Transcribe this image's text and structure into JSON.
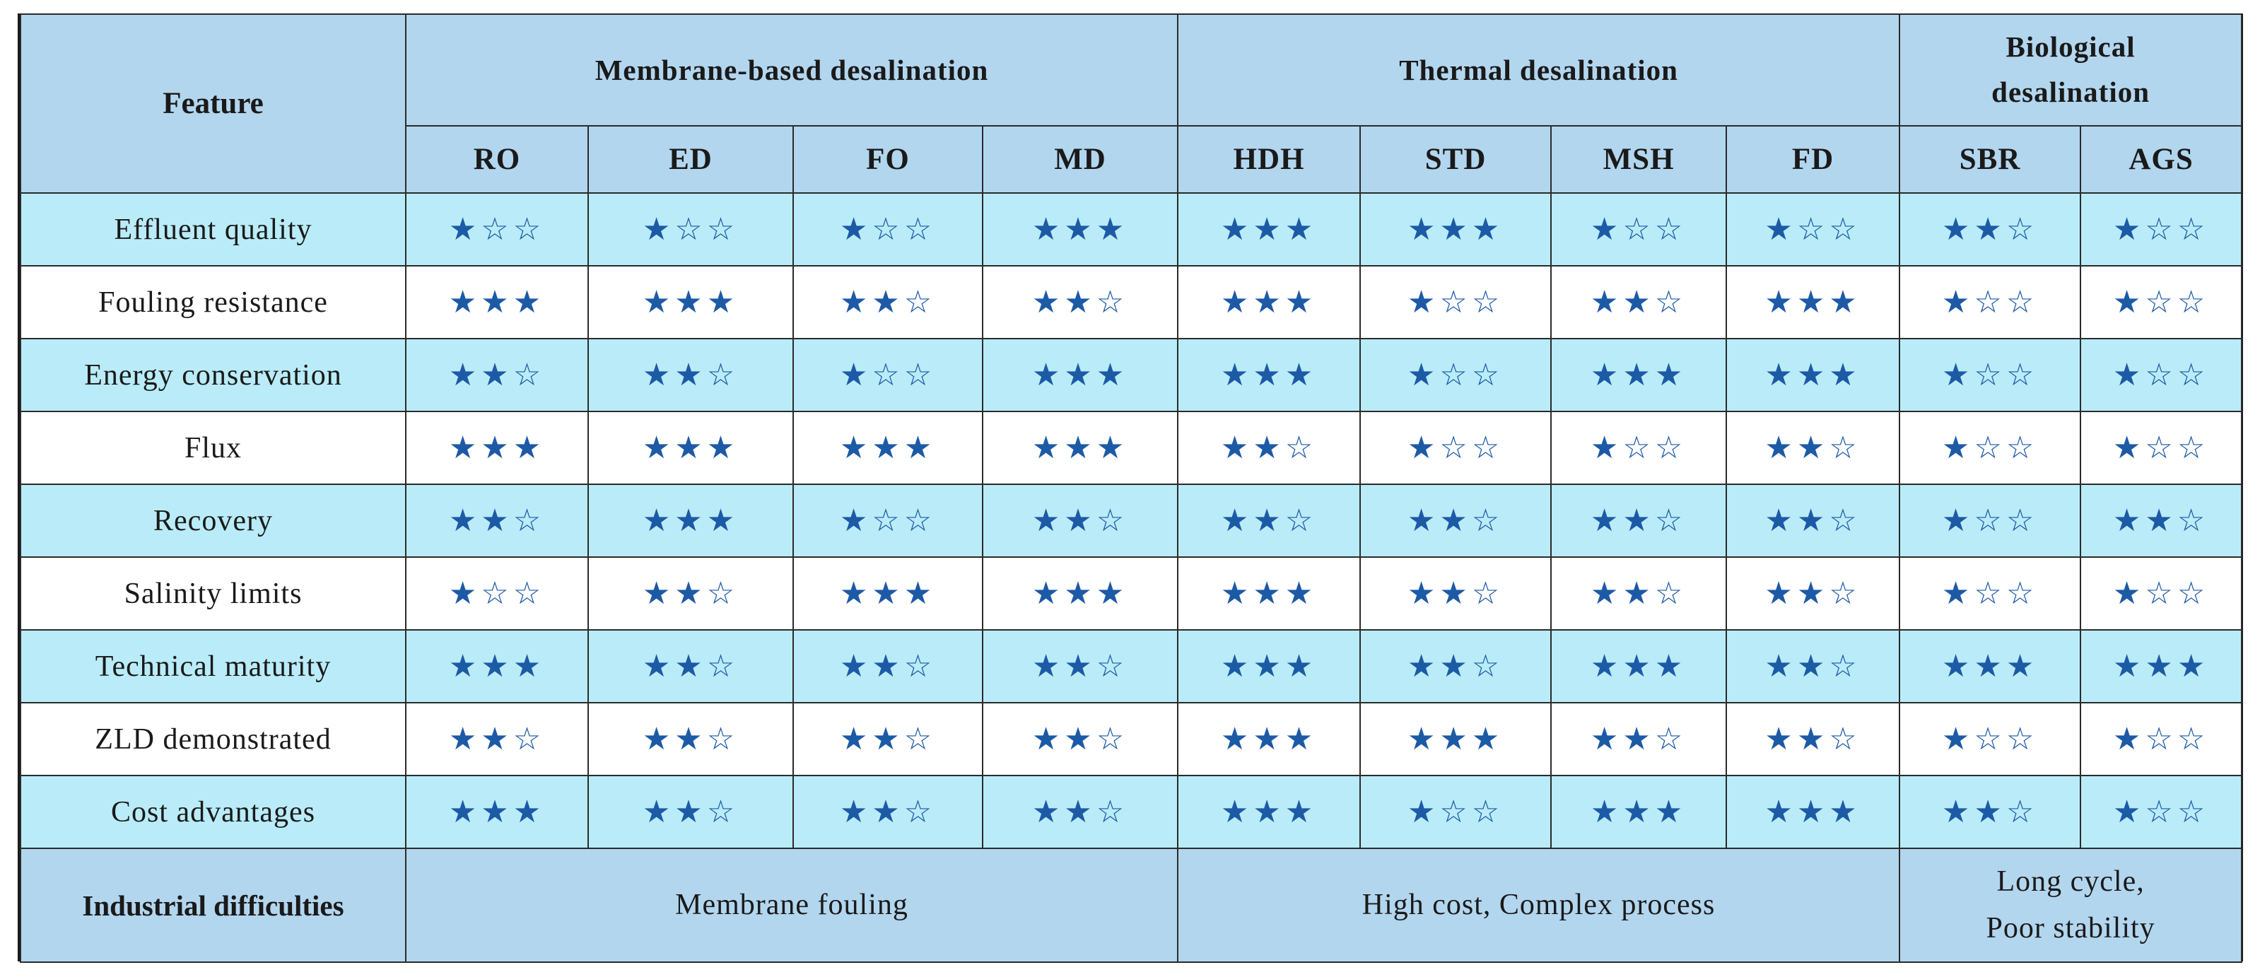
{
  "table": {
    "feature_header": "Feature",
    "groups": [
      {
        "label": "Membrane-based desalination",
        "methods": [
          "RO",
          "ED",
          "FO",
          "MD"
        ]
      },
      {
        "label": "Thermal desalination",
        "methods": [
          "HDH",
          "STD",
          "MSH",
          "FD"
        ]
      },
      {
        "label": "Biological desalination",
        "methods": [
          "SBR",
          "AGS"
        ]
      }
    ],
    "rows": [
      {
        "feature": "Effluent quality",
        "ratings": [
          1,
          1,
          1,
          3,
          3,
          3,
          1,
          1,
          2,
          1
        ]
      },
      {
        "feature": "Fouling resistance",
        "ratings": [
          3,
          3,
          2,
          2,
          3,
          1,
          2,
          3,
          1,
          1
        ]
      },
      {
        "feature": "Energy conservation",
        "ratings": [
          2,
          2,
          1,
          3,
          3,
          1,
          3,
          3,
          1,
          1
        ]
      },
      {
        "feature": "Flux",
        "ratings": [
          3,
          3,
          3,
          3,
          2,
          1,
          1,
          2,
          1,
          1
        ]
      },
      {
        "feature": "Recovery",
        "ratings": [
          2,
          3,
          1,
          2,
          2,
          2,
          2,
          2,
          1,
          2
        ]
      },
      {
        "feature": "Salinity limits",
        "ratings": [
          1,
          2,
          3,
          3,
          3,
          2,
          2,
          2,
          1,
          1
        ]
      },
      {
        "feature": "Technical maturity",
        "ratings": [
          3,
          2,
          2,
          2,
          3,
          2,
          3,
          2,
          3,
          3
        ]
      },
      {
        "feature": "ZLD demonstrated",
        "ratings": [
          2,
          2,
          2,
          2,
          3,
          3,
          2,
          2,
          1,
          1
        ]
      },
      {
        "feature": "Cost advantages",
        "ratings": [
          3,
          2,
          2,
          2,
          3,
          1,
          3,
          3,
          2,
          1
        ]
      }
    ],
    "rating_max": 3,
    "difficulties": {
      "label": "Industrial difficulties",
      "membrane": "Membrane fouling",
      "thermal": "High cost, Complex process",
      "biological": "Long cycle, Poor stability"
    },
    "colors": {
      "header_bg": "#b3d6ef",
      "row_alt_bg": "#b9ecf8",
      "row_bg": "#ffffff",
      "star": "#1d5aa6"
    },
    "star_icons": {
      "filled": "★",
      "empty": "☆"
    }
  }
}
